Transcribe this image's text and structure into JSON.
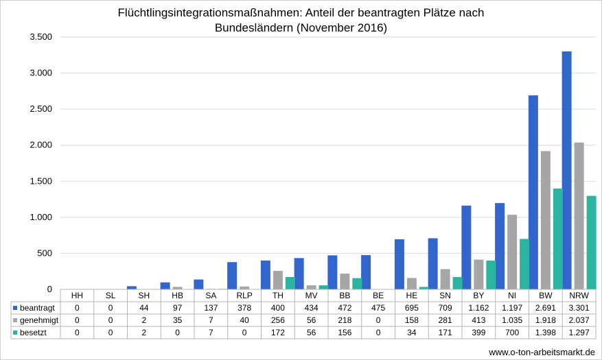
{
  "chart_data": {
    "type": "bar",
    "title_lines": [
      "Flüchtlingsintegrationsmaßnahmen: Anteil der beantragten Plätze nach",
      "Bundesländern (November 2016)"
    ],
    "categories": [
      "HH",
      "SL",
      "SH",
      "HB",
      "SA",
      "RLP",
      "TH",
      "MV",
      "BB",
      "BE",
      "HE",
      "SN",
      "BY",
      "NI",
      "BW",
      "NRW"
    ],
    "series": [
      {
        "name": "beantragt",
        "color": "#3366cc",
        "values": [
          0,
          0,
          44,
          97,
          137,
          378,
          400,
          434,
          472,
          475,
          695,
          709,
          1162,
          1197,
          2691,
          3301
        ],
        "labels": [
          "0",
          "0",
          "44",
          "97",
          "137",
          "378",
          "400",
          "434",
          "472",
          "475",
          "695",
          "709",
          "1.162",
          "1.197",
          "2.691",
          "3.301"
        ]
      },
      {
        "name": "genehmigt",
        "color": "#a6a6a6",
        "values": [
          0,
          0,
          2,
          35,
          7,
          40,
          256,
          56,
          218,
          0,
          158,
          281,
          413,
          1035,
          1918,
          2037
        ],
        "labels": [
          "0",
          "0",
          "2",
          "35",
          "7",
          "40",
          "256",
          "56",
          "218",
          "0",
          "158",
          "281",
          "413",
          "1.035",
          "1.918",
          "2.037"
        ]
      },
      {
        "name": "besetzt",
        "color": "#2bb5a0",
        "values": [
          0,
          0,
          2,
          0,
          7,
          0,
          172,
          56,
          156,
          0,
          34,
          171,
          399,
          700,
          1398,
          1297
        ],
        "labels": [
          "0",
          "0",
          "2",
          "0",
          "7",
          "0",
          "172",
          "56",
          "156",
          "0",
          "34",
          "171",
          "399",
          "700",
          "1.398",
          "1.297"
        ]
      }
    ],
    "ylim": [
      0,
      3500
    ],
    "yticks": [
      0,
      500,
      1000,
      1500,
      2000,
      2500,
      3000,
      3500
    ],
    "ytick_labels": [
      "0",
      "500",
      "1.000",
      "1.500",
      "2.000",
      "2.500",
      "3.000",
      "3.500"
    ],
    "grid": true,
    "legend": "data-table"
  },
  "source": "www.o-ton-arbeitsmarkt.de"
}
